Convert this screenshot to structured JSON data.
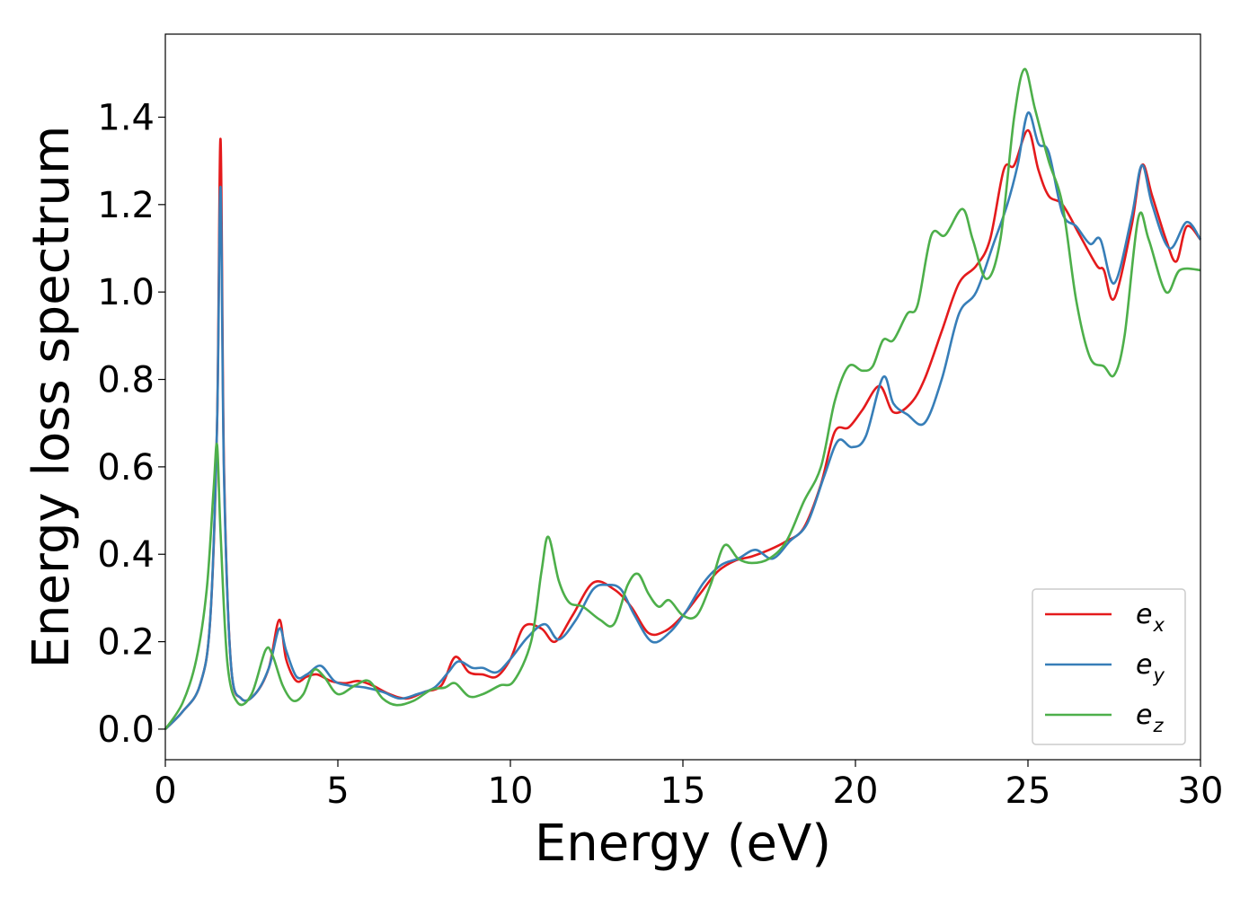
{
  "chart_data": {
    "type": "line",
    "xlabel": "Energy (eV)",
    "ylabel": "Energy loss spectrum",
    "xlim": [
      0,
      30
    ],
    "ylim": [
      -0.07,
      1.59
    ],
    "xticks": [
      0,
      5,
      10,
      15,
      20,
      25,
      30
    ],
    "yticks": [
      0.0,
      0.2,
      0.4,
      0.6,
      0.8,
      1.0,
      1.2,
      1.4
    ],
    "xtick_labels": [
      "0",
      "5",
      "10",
      "15",
      "20",
      "25",
      "30"
    ],
    "ytick_labels": [
      "0.0",
      "0.2",
      "0.4",
      "0.6",
      "0.8",
      "1.0",
      "1.2",
      "1.4"
    ],
    "grid": false,
    "legend_position": "bottom-right",
    "series": [
      {
        "name": "e_x",
        "label_base": "e",
        "label_sub": "x",
        "color": "#e41a1c",
        "points": [
          [
            0,
            0.0
          ],
          [
            0.5,
            0.04
          ],
          [
            1.0,
            0.1
          ],
          [
            1.3,
            0.25
          ],
          [
            1.5,
            0.7
          ],
          [
            1.6,
            1.35
          ],
          [
            1.7,
            0.6
          ],
          [
            1.9,
            0.15
          ],
          [
            2.2,
            0.07
          ],
          [
            2.6,
            0.08
          ],
          [
            3.0,
            0.14
          ],
          [
            3.3,
            0.25
          ],
          [
            3.5,
            0.16
          ],
          [
            3.8,
            0.11
          ],
          [
            4.1,
            0.12
          ],
          [
            4.4,
            0.125
          ],
          [
            4.8,
            0.11
          ],
          [
            5.2,
            0.105
          ],
          [
            5.6,
            0.11
          ],
          [
            6.0,
            0.1
          ],
          [
            6.5,
            0.08
          ],
          [
            7.0,
            0.07
          ],
          [
            7.5,
            0.085
          ],
          [
            8.0,
            0.1
          ],
          [
            8.4,
            0.165
          ],
          [
            8.8,
            0.13
          ],
          [
            9.2,
            0.125
          ],
          [
            9.6,
            0.12
          ],
          [
            10.0,
            0.16
          ],
          [
            10.4,
            0.235
          ],
          [
            10.9,
            0.23
          ],
          [
            11.3,
            0.2
          ],
          [
            11.8,
            0.26
          ],
          [
            12.4,
            0.335
          ],
          [
            13.0,
            0.32
          ],
          [
            13.5,
            0.28
          ],
          [
            14.0,
            0.22
          ],
          [
            14.5,
            0.225
          ],
          [
            15.0,
            0.26
          ],
          [
            15.5,
            0.31
          ],
          [
            16.0,
            0.36
          ],
          [
            16.5,
            0.385
          ],
          [
            17.0,
            0.395
          ],
          [
            17.5,
            0.41
          ],
          [
            18.0,
            0.43
          ],
          [
            18.5,
            0.46
          ],
          [
            19.0,
            0.56
          ],
          [
            19.4,
            0.68
          ],
          [
            19.8,
            0.69
          ],
          [
            20.2,
            0.73
          ],
          [
            20.7,
            0.785
          ],
          [
            21.1,
            0.725
          ],
          [
            21.6,
            0.745
          ],
          [
            22.0,
            0.8
          ],
          [
            22.5,
            0.91
          ],
          [
            23.0,
            1.02
          ],
          [
            23.5,
            1.06
          ],
          [
            23.9,
            1.12
          ],
          [
            24.3,
            1.28
          ],
          [
            24.6,
            1.29
          ],
          [
            25.0,
            1.37
          ],
          [
            25.3,
            1.28
          ],
          [
            25.6,
            1.22
          ],
          [
            26.0,
            1.2
          ],
          [
            26.5,
            1.13
          ],
          [
            27.0,
            1.06
          ],
          [
            27.2,
            1.05
          ],
          [
            27.5,
            0.985
          ],
          [
            28.0,
            1.15
          ],
          [
            28.3,
            1.29
          ],
          [
            28.6,
            1.22
          ],
          [
            29.0,
            1.12
          ],
          [
            29.3,
            1.07
          ],
          [
            29.6,
            1.15
          ],
          [
            30.0,
            1.12
          ]
        ]
      },
      {
        "name": "e_y",
        "label_base": "e",
        "label_sub": "y",
        "color": "#377eb8",
        "points": [
          [
            0,
            0.0
          ],
          [
            0.5,
            0.04
          ],
          [
            1.0,
            0.1
          ],
          [
            1.3,
            0.25
          ],
          [
            1.5,
            0.7
          ],
          [
            1.6,
            1.24
          ],
          [
            1.7,
            0.58
          ],
          [
            1.9,
            0.15
          ],
          [
            2.2,
            0.07
          ],
          [
            2.6,
            0.08
          ],
          [
            3.0,
            0.14
          ],
          [
            3.3,
            0.23
          ],
          [
            3.5,
            0.18
          ],
          [
            3.8,
            0.12
          ],
          [
            4.1,
            0.125
          ],
          [
            4.5,
            0.145
          ],
          [
            4.9,
            0.11
          ],
          [
            5.3,
            0.1
          ],
          [
            5.8,
            0.095
          ],
          [
            6.3,
            0.085
          ],
          [
            6.8,
            0.07
          ],
          [
            7.3,
            0.08
          ],
          [
            7.8,
            0.095
          ],
          [
            8.2,
            0.13
          ],
          [
            8.5,
            0.155
          ],
          [
            8.9,
            0.14
          ],
          [
            9.2,
            0.14
          ],
          [
            9.6,
            0.13
          ],
          [
            10.0,
            0.16
          ],
          [
            10.5,
            0.21
          ],
          [
            11.0,
            0.24
          ],
          [
            11.4,
            0.205
          ],
          [
            11.9,
            0.25
          ],
          [
            12.4,
            0.32
          ],
          [
            12.8,
            0.33
          ],
          [
            13.2,
            0.32
          ],
          [
            13.6,
            0.26
          ],
          [
            14.1,
            0.2
          ],
          [
            14.6,
            0.22
          ],
          [
            15.1,
            0.27
          ],
          [
            15.6,
            0.335
          ],
          [
            16.1,
            0.375
          ],
          [
            16.6,
            0.39
          ],
          [
            17.1,
            0.41
          ],
          [
            17.6,
            0.39
          ],
          [
            18.1,
            0.43
          ],
          [
            18.6,
            0.47
          ],
          [
            19.1,
            0.58
          ],
          [
            19.5,
            0.66
          ],
          [
            19.9,
            0.645
          ],
          [
            20.3,
            0.67
          ],
          [
            20.8,
            0.805
          ],
          [
            21.1,
            0.745
          ],
          [
            21.5,
            0.72
          ],
          [
            22.0,
            0.7
          ],
          [
            22.5,
            0.8
          ],
          [
            23.0,
            0.95
          ],
          [
            23.5,
            1.0
          ],
          [
            24.0,
            1.11
          ],
          [
            24.4,
            1.2
          ],
          [
            24.7,
            1.29
          ],
          [
            25.0,
            1.41
          ],
          [
            25.3,
            1.34
          ],
          [
            25.6,
            1.32
          ],
          [
            26.0,
            1.18
          ],
          [
            26.4,
            1.15
          ],
          [
            26.8,
            1.11
          ],
          [
            27.1,
            1.12
          ],
          [
            27.5,
            1.02
          ],
          [
            28.0,
            1.17
          ],
          [
            28.3,
            1.29
          ],
          [
            28.6,
            1.2
          ],
          [
            29.1,
            1.1
          ],
          [
            29.6,
            1.16
          ],
          [
            30.0,
            1.12
          ]
        ]
      },
      {
        "name": "e_z",
        "label_base": "e",
        "label_sub": "z",
        "color": "#4daf4a",
        "points": [
          [
            0,
            0.0
          ],
          [
            0.5,
            0.06
          ],
          [
            0.9,
            0.16
          ],
          [
            1.2,
            0.32
          ],
          [
            1.4,
            0.55
          ],
          [
            1.5,
            0.65
          ],
          [
            1.6,
            0.45
          ],
          [
            1.8,
            0.15
          ],
          [
            2.1,
            0.06
          ],
          [
            2.5,
            0.08
          ],
          [
            2.9,
            0.18
          ],
          [
            3.1,
            0.17
          ],
          [
            3.4,
            0.1
          ],
          [
            3.7,
            0.065
          ],
          [
            4.0,
            0.08
          ],
          [
            4.3,
            0.135
          ],
          [
            4.6,
            0.12
          ],
          [
            5.0,
            0.08
          ],
          [
            5.5,
            0.1
          ],
          [
            5.9,
            0.11
          ],
          [
            6.3,
            0.07
          ],
          [
            6.7,
            0.055
          ],
          [
            7.2,
            0.065
          ],
          [
            7.7,
            0.09
          ],
          [
            8.1,
            0.095
          ],
          [
            8.4,
            0.105
          ],
          [
            8.8,
            0.075
          ],
          [
            9.2,
            0.08
          ],
          [
            9.7,
            0.1
          ],
          [
            10.1,
            0.11
          ],
          [
            10.6,
            0.2
          ],
          [
            10.9,
            0.36
          ],
          [
            11.1,
            0.44
          ],
          [
            11.4,
            0.34
          ],
          [
            11.7,
            0.29
          ],
          [
            12.1,
            0.28
          ],
          [
            12.6,
            0.25
          ],
          [
            13.0,
            0.24
          ],
          [
            13.4,
            0.33
          ],
          [
            13.7,
            0.355
          ],
          [
            14.0,
            0.31
          ],
          [
            14.3,
            0.28
          ],
          [
            14.6,
            0.295
          ],
          [
            15.0,
            0.26
          ],
          [
            15.4,
            0.26
          ],
          [
            15.8,
            0.33
          ],
          [
            16.2,
            0.42
          ],
          [
            16.6,
            0.39
          ],
          [
            17.0,
            0.38
          ],
          [
            17.5,
            0.39
          ],
          [
            18.0,
            0.43
          ],
          [
            18.5,
            0.52
          ],
          [
            19.0,
            0.6
          ],
          [
            19.4,
            0.75
          ],
          [
            19.8,
            0.83
          ],
          [
            20.2,
            0.82
          ],
          [
            20.5,
            0.83
          ],
          [
            20.8,
            0.89
          ],
          [
            21.1,
            0.89
          ],
          [
            21.5,
            0.95
          ],
          [
            21.8,
            0.97
          ],
          [
            22.2,
            1.13
          ],
          [
            22.6,
            1.13
          ],
          [
            23.1,
            1.19
          ],
          [
            23.4,
            1.12
          ],
          [
            23.8,
            1.03
          ],
          [
            24.2,
            1.12
          ],
          [
            24.6,
            1.4
          ],
          [
            24.9,
            1.51
          ],
          [
            25.2,
            1.42
          ],
          [
            25.6,
            1.3
          ],
          [
            26.0,
            1.2
          ],
          [
            26.4,
            0.98
          ],
          [
            26.8,
            0.85
          ],
          [
            27.2,
            0.83
          ],
          [
            27.5,
            0.81
          ],
          [
            27.8,
            0.9
          ],
          [
            28.2,
            1.17
          ],
          [
            28.5,
            1.12
          ],
          [
            29.0,
            1.0
          ],
          [
            29.4,
            1.05
          ],
          [
            30.0,
            1.05
          ]
        ]
      }
    ]
  }
}
